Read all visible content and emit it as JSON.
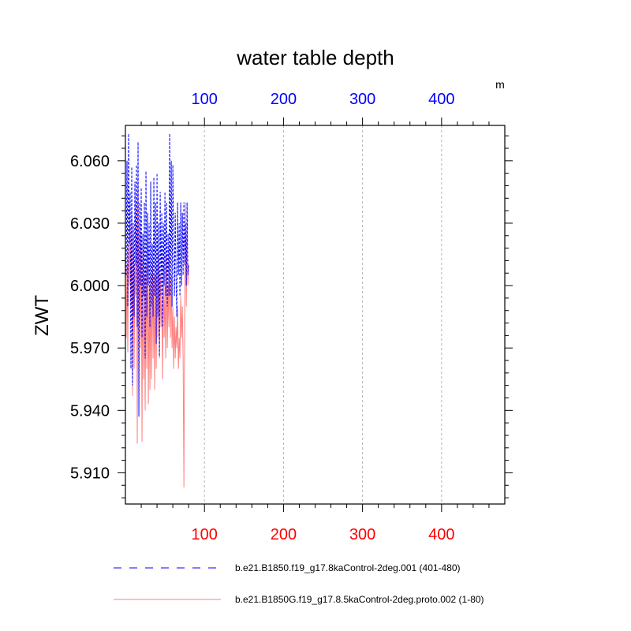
{
  "chart_data": {
    "type": "line",
    "title": "water table depth",
    "ylabel": "ZWT",
    "xlabel": "",
    "top_axis_unit": "m",
    "xlim": [
      0,
      480
    ],
    "ylim": [
      5.895,
      6.077
    ],
    "x_ticks": [
      100,
      200,
      300,
      400
    ],
    "x_tick_labels": [
      "100",
      "200",
      "300",
      "400"
    ],
    "y_ticks": [
      5.91,
      5.94,
      5.97,
      6.0,
      6.03,
      6.06
    ],
    "y_tick_labels": [
      "5.910",
      "5.940",
      "5.970",
      "6.000",
      "6.030",
      "6.060"
    ],
    "grid": "vertical dashed at major x ticks",
    "legend_position": "bottom",
    "colors": {
      "top_axis": "#0000ff",
      "bottom_axis": "#ff0000",
      "series1": "#0000ff",
      "series2": "#ff8080",
      "grid": "#b4b4b4"
    },
    "series": [
      {
        "name": "b.e21.B1850.f19_g17.8kaControl-2deg.001 (401-480)",
        "color": "#0000ff",
        "style": "dashed",
        "x": [
          1,
          2,
          3,
          4,
          5,
          6,
          7,
          8,
          9,
          10,
          11,
          12,
          13,
          14,
          15,
          16,
          17,
          18,
          19,
          20,
          21,
          22,
          23,
          24,
          25,
          26,
          27,
          28,
          29,
          30,
          31,
          32,
          33,
          34,
          35,
          36,
          37,
          38,
          39,
          40,
          41,
          42,
          43,
          44,
          45,
          46,
          47,
          48,
          49,
          50,
          51,
          52,
          53,
          54,
          55,
          56,
          57,
          58,
          59,
          60,
          61,
          62,
          63,
          64,
          65,
          66,
          67,
          68,
          69,
          70,
          71,
          72,
          73,
          74,
          75,
          76,
          77,
          78,
          79,
          80
        ],
        "y": [
          6.005,
          6.06,
          5.99,
          6.073,
          6.02,
          6.045,
          5.96,
          6.057,
          5.952,
          6.03,
          5.985,
          6.05,
          6.01,
          6.058,
          5.98,
          6.069,
          5.937,
          6.04,
          6.0,
          6.047,
          5.975,
          6.025,
          5.995,
          6.04,
          5.965,
          6.055,
          5.985,
          6.035,
          6.0,
          6.03,
          5.98,
          6.05,
          5.99,
          6.02,
          5.985,
          6.052,
          5.995,
          6.04,
          5.972,
          6.054,
          5.985,
          6.03,
          5.966,
          6.045,
          5.995,
          6.035,
          5.98,
          6.03,
          6.0,
          6.045,
          5.995,
          6.04,
          5.99,
          6.025,
          5.995,
          6.073,
          5.995,
          6.06,
          5.99,
          6.058,
          6.02,
          5.995,
          6.035,
          6.005,
          5.985,
          6.04,
          6.005,
          6.03,
          5.995,
          6.04,
          6.0,
          6.035,
          6.005,
          6.04,
          6.01,
          6.03,
          6.0,
          6.04,
          6.005,
          6.01
        ]
      },
      {
        "name": "b.e21.B1850G.f19_g17.8.5kaControl-2deg.proto.002 (1-80)",
        "color": "#ff8080",
        "style": "solid",
        "x": [
          1,
          2,
          3,
          4,
          5,
          6,
          7,
          8,
          9,
          10,
          11,
          12,
          13,
          14,
          15,
          16,
          17,
          18,
          19,
          20,
          21,
          22,
          23,
          24,
          25,
          26,
          27,
          28,
          29,
          30,
          31,
          32,
          33,
          34,
          35,
          36,
          37,
          38,
          39,
          40,
          41,
          42,
          43,
          44,
          45,
          46,
          47,
          48,
          49,
          50,
          51,
          52,
          53,
          54,
          55,
          56,
          57,
          58,
          59,
          60,
          61,
          62,
          63,
          64,
          65,
          66,
          67,
          68,
          69,
          70,
          71,
          72,
          73,
          74,
          75,
          76,
          77,
          78,
          79,
          80
        ],
        "y": [
          5.975,
          6.01,
          5.968,
          6.02,
          6.0,
          6.03,
          5.99,
          6.035,
          5.947,
          6.025,
          5.96,
          6.01,
          5.995,
          6.04,
          5.924,
          6.05,
          5.94,
          6.03,
          5.97,
          6.025,
          5.925,
          6.02,
          5.955,
          6.005,
          5.94,
          6.01,
          5.96,
          6.025,
          5.943,
          6.0,
          5.95,
          6.005,
          5.955,
          6.01,
          5.965,
          6.005,
          5.95,
          6.005,
          5.96,
          6.01,
          5.975,
          6.015,
          5.965,
          6.005,
          5.98,
          5.995,
          5.955,
          6.01,
          5.975,
          6.0,
          5.965,
          6.015,
          5.97,
          6.0,
          5.98,
          6.02,
          5.975,
          6.005,
          5.97,
          5.99,
          5.96,
          5.985,
          5.965,
          5.98,
          5.97,
          5.99,
          5.96,
          5.975,
          5.965,
          5.995,
          5.975,
          5.99,
          5.965,
          5.903,
          5.985,
          6.04,
          5.99,
          6.03,
          6.0,
          6.01
        ]
      }
    ]
  }
}
